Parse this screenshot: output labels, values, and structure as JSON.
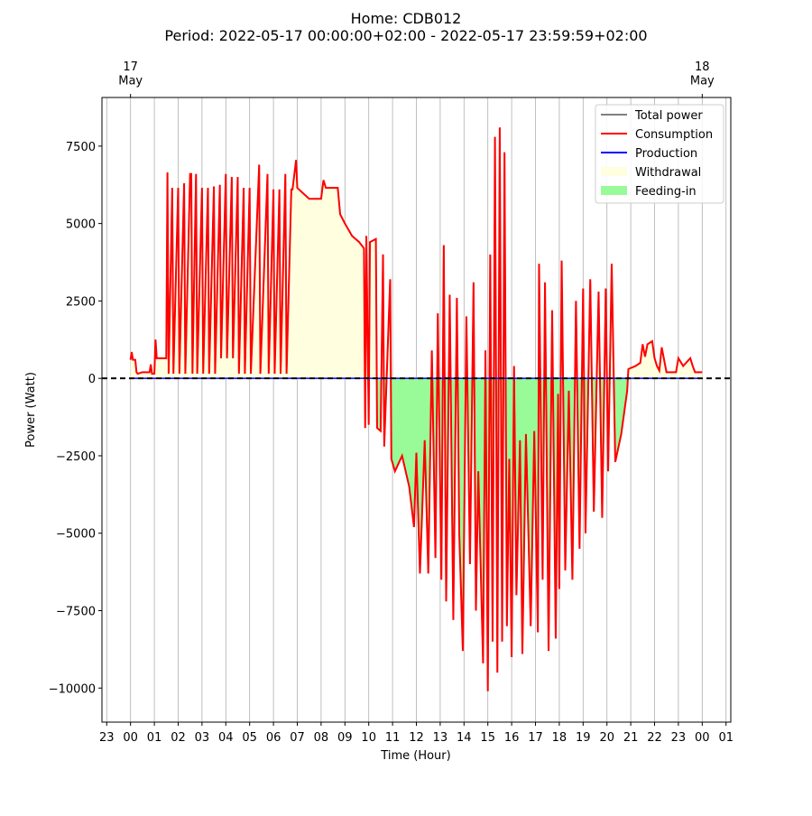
{
  "chart_data": {
    "type": "line",
    "title": "Home: CDB012\nPeriod: 2022-05-17 00:00:00+02:00 - 2022-05-17 23:59:59+02:00",
    "xlabel": "Time (Hour)",
    "ylabel": "Power (Watt)",
    "xlim": [
      -1.2,
      25.2
    ],
    "ylim": [
      -11100,
      9070
    ],
    "xticks": [
      {
        "value": -1,
        "label": "23"
      },
      {
        "value": 0,
        "label": "00"
      },
      {
        "value": 1,
        "label": "01"
      },
      {
        "value": 2,
        "label": "02"
      },
      {
        "value": 3,
        "label": "03"
      },
      {
        "value": 4,
        "label": "04"
      },
      {
        "value": 5,
        "label": "05"
      },
      {
        "value": 6,
        "label": "06"
      },
      {
        "value": 7,
        "label": "07"
      },
      {
        "value": 8,
        "label": "08"
      },
      {
        "value": 9,
        "label": "09"
      },
      10,
      11,
      12,
      13,
      14,
      15,
      16,
      17,
      18,
      19,
      20,
      21,
      22,
      23,
      {
        "value": 24,
        "label": "00"
      },
      {
        "value": 25,
        "label": "01"
      }
    ],
    "x2ticks": [
      {
        "value": 0,
        "label": "17\nMay"
      },
      {
        "value": 24,
        "label": "18\nMay"
      }
    ],
    "yticks": [
      {
        "value": -10000,
        "label": "−10000"
      },
      {
        "value": -7500,
        "label": "−7500"
      },
      {
        "value": -5000,
        "label": "−5000"
      },
      {
        "value": -2500,
        "label": "−2500"
      },
      0,
      2500,
      5000,
      7500
    ],
    "grid": "x",
    "hline": 0,
    "legend": "upper right",
    "x": [
      0.0,
      0.05,
      0.1,
      0.2,
      0.25,
      0.3,
      0.5,
      0.8,
      0.85,
      0.9,
      1.0,
      1.05,
      1.1,
      1.5,
      1.55,
      1.6,
      1.75,
      1.8,
      2.0,
      2.05,
      2.25,
      2.3,
      2.5,
      2.55,
      2.6,
      2.75,
      2.8,
      3.0,
      3.05,
      3.25,
      3.3,
      3.5,
      3.55,
      3.75,
      3.8,
      4.0,
      4.05,
      4.25,
      4.3,
      4.5,
      4.55,
      4.75,
      4.8,
      5.0,
      5.05,
      5.4,
      5.45,
      5.75,
      5.8,
      6.0,
      6.05,
      6.25,
      6.3,
      6.5,
      6.55,
      6.75,
      6.8,
      6.95,
      7.0,
      7.5,
      8.0,
      8.1,
      8.2,
      8.7,
      8.8,
      9.0,
      9.3,
      9.6,
      9.8,
      9.85,
      9.9,
      10.0,
      10.05,
      10.3,
      10.35,
      10.5,
      10.6,
      10.65,
      10.9,
      10.95,
      11.1,
      11.4,
      11.7,
      11.9,
      12.0,
      12.15,
      12.35,
      12.5,
      12.65,
      12.8,
      12.9,
      13.05,
      13.15,
      13.25,
      13.4,
      13.55,
      13.7,
      13.8,
      13.95,
      14.1,
      14.25,
      14.4,
      14.5,
      14.6,
      14.8,
      14.9,
      15.0,
      15.1,
      15.2,
      15.3,
      15.4,
      15.5,
      15.6,
      15.7,
      15.8,
      15.9,
      16.0,
      16.1,
      16.2,
      16.35,
      16.45,
      16.6,
      16.8,
      16.95,
      17.1,
      17.15,
      17.3,
      17.4,
      17.55,
      17.7,
      17.85,
      17.95,
      18.0,
      18.1,
      18.25,
      18.4,
      18.55,
      18.7,
      18.85,
      19.0,
      19.1,
      19.3,
      19.45,
      19.65,
      19.8,
      19.95,
      20.05,
      20.2,
      20.35,
      20.6,
      20.85,
      20.9,
      21.2,
      21.4,
      21.5,
      21.6,
      21.7,
      21.9,
      22.0,
      22.1,
      22.2,
      22.3,
      22.5,
      22.9,
      23.0,
      23.2,
      23.5,
      23.6,
      23.7,
      24.0
    ],
    "series": [
      {
        "name": "Total power",
        "color": "#808080",
        "values": [
          600,
          850,
          600,
          600,
          200,
          150,
          200,
          200,
          450,
          150,
          150,
          1250,
          650,
          650,
          6650,
          150,
          6150,
          150,
          6150,
          150,
          6300,
          150,
          6600,
          6600,
          150,
          6600,
          150,
          6150,
          150,
          6150,
          150,
          6200,
          150,
          6250,
          650,
          6600,
          650,
          6500,
          650,
          6500,
          150,
          6150,
          150,
          6150,
          150,
          6900,
          150,
          6600,
          150,
          6100,
          150,
          6100,
          150,
          6600,
          150,
          6100,
          6100,
          7050,
          6150,
          5800,
          5800,
          6400,
          6150,
          6150,
          5300,
          5000,
          4600,
          4400,
          4200,
          -1600,
          4600,
          -1500,
          4400,
          4500,
          -1600,
          -1700,
          4000,
          -2200,
          3200,
          -2600,
          -3000,
          -2500,
          -3500,
          -4800,
          -2400,
          -6300,
          -2000,
          -6300,
          900,
          -5800,
          2100,
          -6500,
          4300,
          -7200,
          2700,
          -7800,
          2600,
          -5000,
          -8800,
          2000,
          -6000,
          3100,
          -7500,
          -3000,
          -9200,
          900,
          -10100,
          4000,
          -8500,
          7800,
          -9500,
          8100,
          -8500,
          7300,
          -8000,
          -2600,
          -9000,
          400,
          -7000,
          -2000,
          -8900,
          -1800,
          -8000,
          -1700,
          -8200,
          3700,
          -6500,
          3100,
          -8800,
          2200,
          -8400,
          -500,
          -6800,
          3800,
          -6200,
          -400,
          -6500,
          2500,
          -5500,
          2900,
          -5000,
          3200,
          -4300,
          2800,
          -4500,
          2900,
          -3000,
          3700,
          -2700,
          -1800,
          -400,
          300,
          400,
          500,
          1100,
          700,
          1100,
          1200,
          650,
          400,
          250,
          1000,
          200,
          200,
          650,
          400,
          650,
          400,
          200,
          200
        ]
      },
      {
        "name": "Consumption",
        "color": "#ff0000",
        "values": [
          600,
          850,
          600,
          600,
          200,
          150,
          200,
          200,
          450,
          150,
          150,
          1250,
          650,
          650,
          6650,
          150,
          6150,
          150,
          6150,
          150,
          6300,
          150,
          6600,
          6600,
          150,
          6600,
          150,
          6150,
          150,
          6150,
          150,
          6200,
          150,
          6250,
          650,
          6600,
          650,
          6500,
          650,
          6500,
          150,
          6150,
          150,
          6150,
          150,
          6900,
          150,
          6600,
          150,
          6100,
          150,
          6100,
          150,
          6600,
          150,
          6100,
          6100,
          7050,
          6150,
          5800,
          5800,
          6400,
          6150,
          6150,
          5300,
          5000,
          4600,
          4400,
          4200,
          -1600,
          4600,
          -1500,
          4400,
          4500,
          -1600,
          -1700,
          4000,
          -2200,
          3200,
          -2600,
          -3000,
          -2500,
          -3500,
          -4800,
          -2400,
          -6300,
          -2000,
          -6300,
          900,
          -5800,
          2100,
          -6500,
          4300,
          -7200,
          2700,
          -7800,
          2600,
          -5000,
          -8800,
          2000,
          -6000,
          3100,
          -7500,
          -3000,
          -9200,
          900,
          -10100,
          4000,
          -8500,
          7800,
          -9500,
          8100,
          -8500,
          7300,
          -8000,
          -2600,
          -9000,
          400,
          -7000,
          -2000,
          -8900,
          -1800,
          -8000,
          -1700,
          -8200,
          3700,
          -6500,
          3100,
          -8800,
          2200,
          -8400,
          -500,
          -6800,
          3800,
          -6200,
          -400,
          -6500,
          2500,
          -5500,
          2900,
          -5000,
          3200,
          -4300,
          2800,
          -4500,
          2900,
          -3000,
          3700,
          -2700,
          -1800,
          -400,
          300,
          400,
          500,
          1100,
          700,
          1100,
          1200,
          650,
          400,
          250,
          1000,
          200,
          200,
          650,
          400,
          650,
          400,
          200,
          200
        ]
      },
      {
        "name": "Production",
        "color": "#0000ff",
        "x": [
          0,
          24
        ],
        "values": [
          0,
          0
        ]
      }
    ],
    "areas": [
      {
        "name": "Withdrawal",
        "color": "#ffffe0",
        "side": "above"
      },
      {
        "name": "Feeding-in",
        "color": "#98fb98",
        "side": "below"
      }
    ]
  }
}
